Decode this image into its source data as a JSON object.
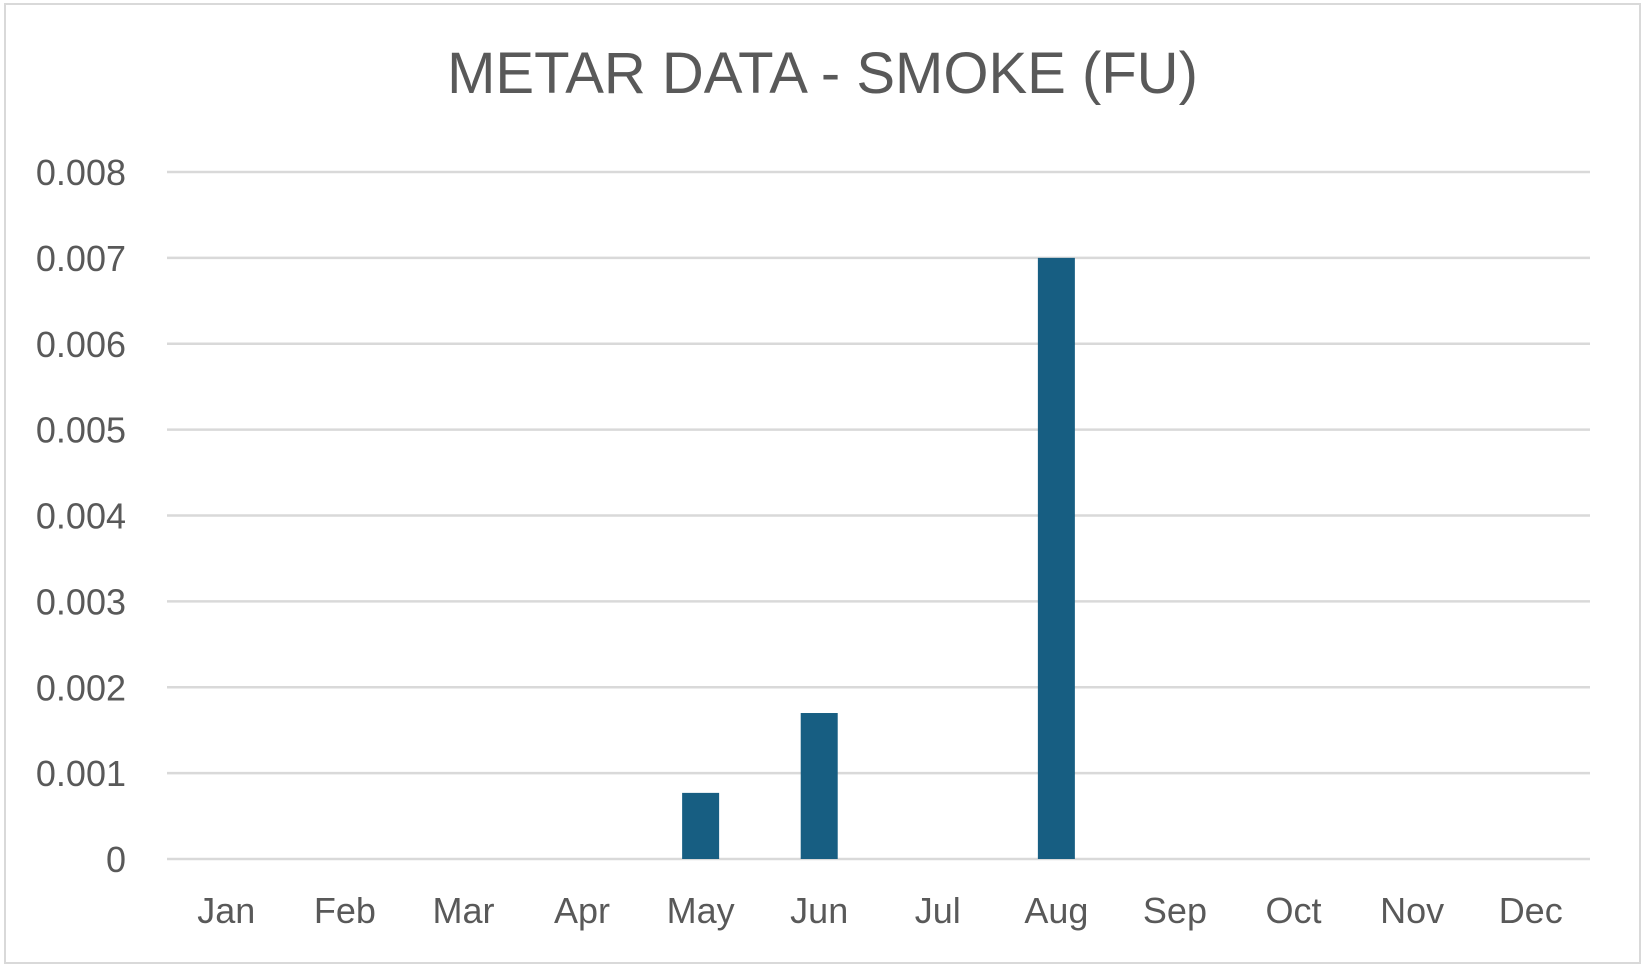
{
  "chart_data": {
    "type": "bar",
    "title": "METAR DATA - SMOKE (FU)",
    "xlabel": "",
    "ylabel": "",
    "categories": [
      "Jan",
      "Feb",
      "Mar",
      "Apr",
      "May",
      "Jun",
      "Jul",
      "Aug",
      "Sep",
      "Oct",
      "Nov",
      "Dec"
    ],
    "values": [
      0,
      0,
      0,
      0,
      0.00077,
      0.0017,
      0,
      0.007,
      0,
      0,
      0,
      0
    ],
    "ylim": [
      0,
      0.008
    ],
    "yticks": [
      "0",
      "0.001",
      "0.002",
      "0.003",
      "0.004",
      "0.005",
      "0.006",
      "0.007",
      "0.008"
    ],
    "grid": true,
    "legend": "none",
    "bar_color": "#175e82",
    "grid_color": "#d9d9d9",
    "text_color": "#595959"
  }
}
